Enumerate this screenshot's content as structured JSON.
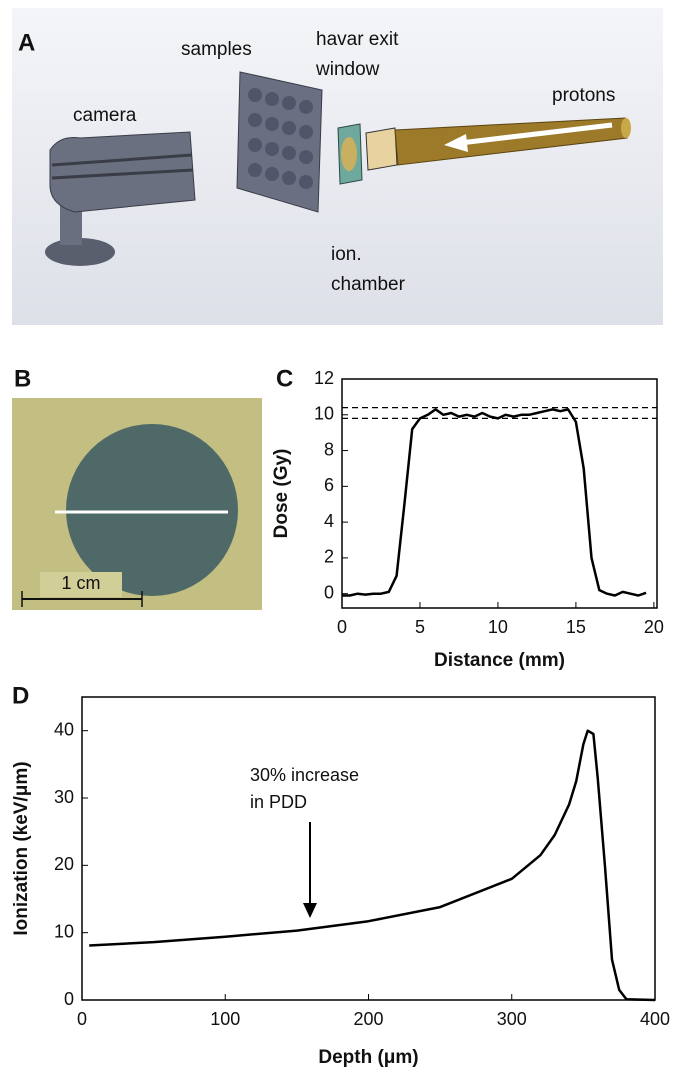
{
  "panels": {
    "a": {
      "label": "A",
      "samples": "samples",
      "havar": [
        "havar exit",
        "window"
      ],
      "camera": "camera",
      "protons": "protons",
      "chamber": [
        "ion.",
        "chamber"
      ]
    },
    "b": {
      "label": "B",
      "scale_bar": "1 cm"
    }
  },
  "chart_data": [
    {
      "type": "line",
      "panel": "C",
      "xlabel": "Distance (mm)",
      "ylabel": "Dose (Gy)",
      "x": [
        0,
        0.5,
        1,
        1.5,
        2,
        2.5,
        3,
        3.5,
        4,
        4.5,
        5,
        5.5,
        6,
        6.5,
        7,
        7.5,
        8,
        8.5,
        9,
        9.5,
        10,
        10.5,
        11,
        11.5,
        12,
        12.5,
        13,
        13.5,
        14,
        14.5,
        15,
        15.5,
        16,
        16.5,
        17,
        17.5,
        18,
        18.5,
        19,
        19.5
      ],
      "series": [
        {
          "color": "#000000",
          "values": [
            -0.1,
            -0.1,
            0,
            -0.05,
            0,
            0,
            0.1,
            1,
            5,
            9.2,
            9.8,
            10,
            10.3,
            10,
            10.1,
            9.9,
            10,
            9.9,
            10.1,
            9.9,
            9.8,
            10,
            9.9,
            10,
            10,
            10.1,
            10.2,
            10.3,
            10.2,
            10.3,
            9.6,
            7,
            2,
            0.2,
            0,
            -0.1,
            0.1,
            0,
            -0.1,
            0.05
          ]
        }
      ],
      "hlines": [
        10.4,
        9.8
      ],
      "xlim": [
        0,
        20.2
      ],
      "ylim": [
        -0.8,
        12
      ],
      "xticks": [
        0,
        5,
        10,
        15,
        20
      ],
      "yticks": [
        0,
        2,
        4,
        6,
        8,
        10,
        12
      ]
    },
    {
      "type": "line",
      "panel": "D",
      "xlabel": "Depth (μm)",
      "ylabel": "Ionization (keV/μm)",
      "annotation": [
        "30% increase",
        "in PDD"
      ],
      "x": [
        5,
        50,
        100,
        150,
        200,
        250,
        300,
        320,
        330,
        340,
        345,
        350,
        353,
        357,
        360,
        365,
        370,
        375,
        380,
        400
      ],
      "series": [
        {
          "color": "#000000",
          "values": [
            8.1,
            8.6,
            9.4,
            10.3,
            11.7,
            13.8,
            18,
            21.5,
            24.5,
            29,
            32.5,
            38,
            40,
            39.5,
            33,
            20,
            6,
            1.5,
            0.1,
            0
          ]
        }
      ],
      "xlim": [
        0,
        400
      ],
      "ylim": [
        0,
        45
      ],
      "xticks": [
        0,
        100,
        200,
        300,
        400
      ],
      "yticks": [
        0,
        10,
        20,
        30,
        40
      ]
    }
  ]
}
